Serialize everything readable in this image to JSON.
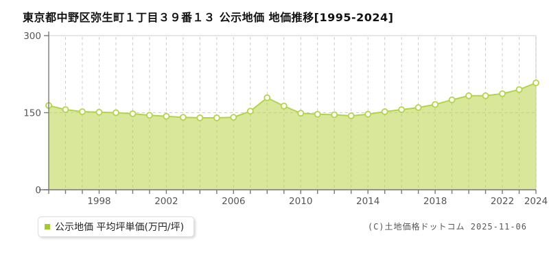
{
  "page": {
    "title": "東京都中野区弥生町１丁目３９番１３ 公示地価 地価推移[1995-2024]",
    "copyright": "(C)土地価格ドットコム 2025-11-06"
  },
  "legend": {
    "label": "公示地価 平均坪単価(万円/坪)",
    "swatch_color": "#a3cc29",
    "position": "bottom-left"
  },
  "colors": {
    "line": "#b2d44a",
    "area_fill": "rgba(186,211,71,0.55)",
    "marker_fill": "#fffef5",
    "marker_stroke": "#b2d44a",
    "grid": "#cccccc",
    "frame_light": "#dddddd",
    "axis": "#777777",
    "tick_label": "#555555"
  },
  "chart_data": {
    "type": "area",
    "title": "東京都中野区弥生町１丁目３９番１３ 公示地価 地価推移[1995-2024]",
    "x": [
      1995,
      1996,
      1997,
      1998,
      1999,
      2000,
      2001,
      2002,
      2003,
      2004,
      2005,
      2006,
      2007,
      2008,
      2009,
      2010,
      2011,
      2012,
      2013,
      2014,
      2015,
      2016,
      2017,
      2018,
      2019,
      2020,
      2021,
      2022,
      2023,
      2024
    ],
    "series": [
      {
        "name": "公示地価 平均坪単価(万円/坪)",
        "values": [
          164,
          156,
          152,
          151,
          150,
          148,
          145,
          143,
          141,
          140,
          140,
          141,
          153,
          179,
          163,
          149,
          147,
          146,
          144,
          147,
          152,
          156,
          160,
          166,
          175,
          183,
          183,
          187,
          195,
          208
        ]
      }
    ],
    "ylim": [
      0,
      300
    ],
    "yticks": [
      0,
      150,
      300
    ],
    "xtick_labels": [
      1998,
      2002,
      2006,
      2010,
      2014,
      2018,
      2022,
      2024
    ],
    "grid": {
      "vertical": "dashed line per year",
      "horizontal_at": [
        150
      ],
      "style": "dashed"
    },
    "legend_position": "bottom-left",
    "markers": "white circles on every point"
  }
}
